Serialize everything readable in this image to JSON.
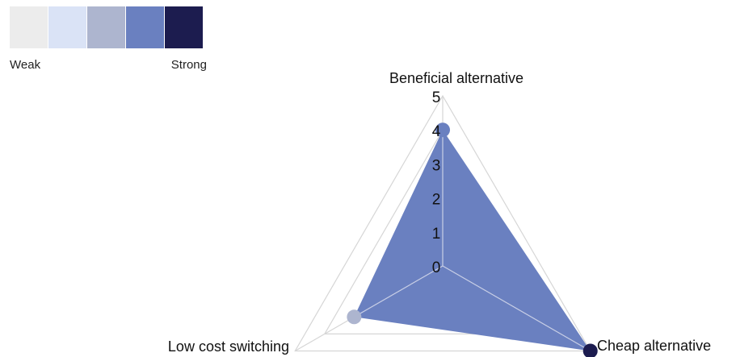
{
  "legend": {
    "weak_label": "Weak",
    "strong_label": "Strong",
    "colors": [
      "#ececec",
      "#dae3f6",
      "#adb5cf",
      "#6a80c0",
      "#1c1c4f"
    ]
  },
  "chart_data": {
    "type": "radar",
    "axes": [
      "Beneficial alternative",
      "Cheap alternative",
      "Low cost switching"
    ],
    "rlim": [
      0,
      5
    ],
    "ticks": [
      0,
      1,
      2,
      3,
      4,
      5
    ],
    "series": [
      {
        "values": [
          4,
          5,
          3
        ],
        "fill_color": "#6a80c0",
        "point_colors": [
          "#6a80c0",
          "#1c1c4f",
          "#adb5cf"
        ]
      }
    ],
    "grid": true
  }
}
